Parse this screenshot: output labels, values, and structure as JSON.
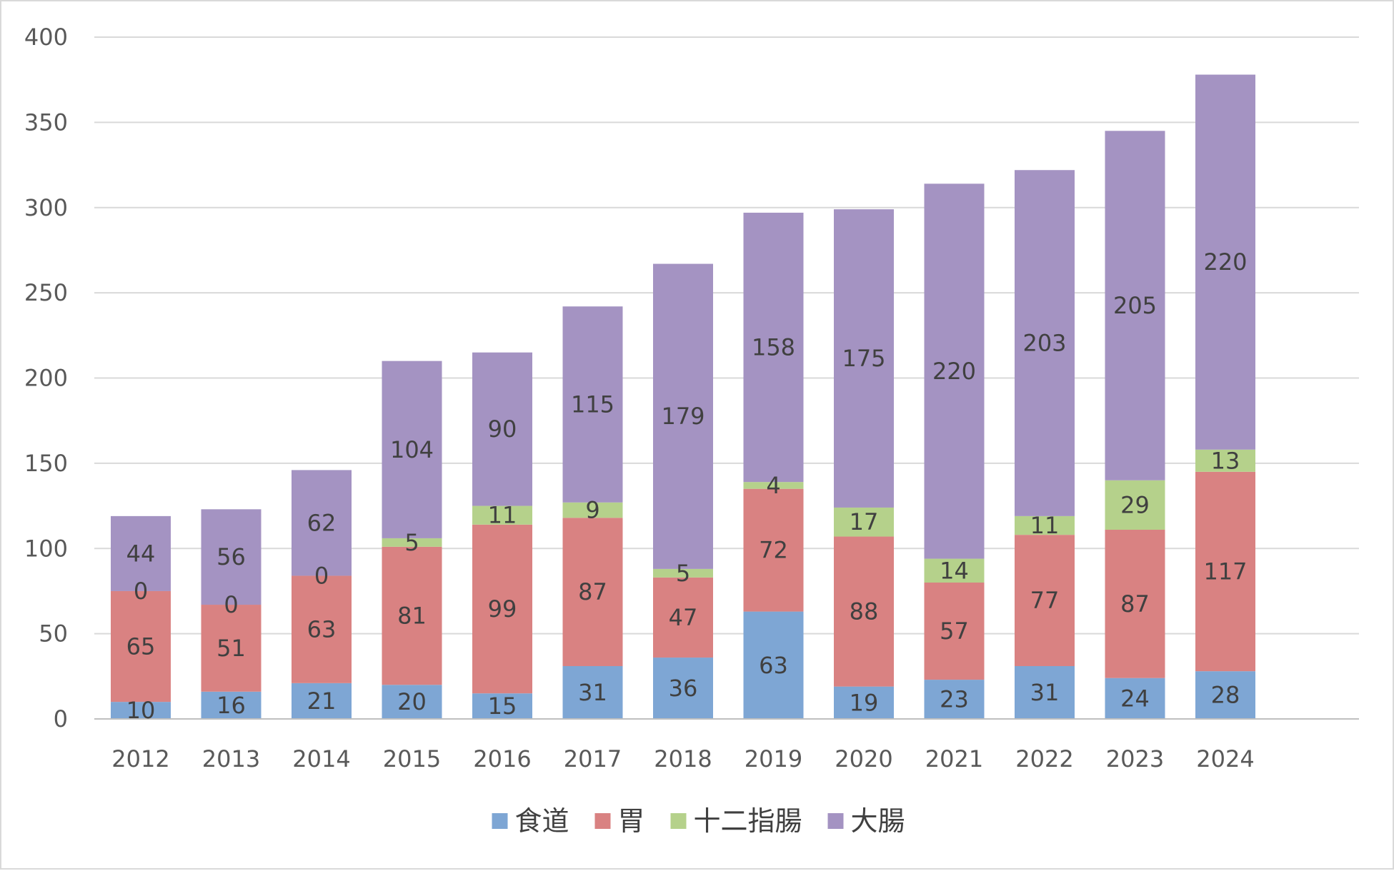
{
  "chart_data": {
    "type": "bar",
    "stacked": true,
    "title": "",
    "xlabel": "",
    "ylabel": "",
    "categories": [
      "2012",
      "2013",
      "2014",
      "2015",
      "2016",
      "2017",
      "2018",
      "2019",
      "2020",
      "2021",
      "2022",
      "2023",
      "2024"
    ],
    "series": [
      {
        "name": "食道",
        "color": "#7ea6d4",
        "values": [
          10,
          16,
          21,
          20,
          15,
          31,
          36,
          63,
          19,
          23,
          31,
          24,
          28
        ]
      },
      {
        "name": "胃",
        "color": "#d98282",
        "values": [
          65,
          51,
          63,
          81,
          99,
          87,
          47,
          72,
          88,
          57,
          77,
          87,
          117
        ]
      },
      {
        "name": "十二指腸",
        "color": "#b5d18b",
        "values": [
          0,
          0,
          0,
          5,
          11,
          9,
          5,
          4,
          17,
          14,
          11,
          29,
          13
        ]
      },
      {
        "name": "大腸",
        "color": "#a493c2",
        "values": [
          44,
          56,
          62,
          104,
          90,
          115,
          179,
          158,
          175,
          220,
          203,
          205,
          220
        ]
      }
    ],
    "ylim": [
      0,
      400
    ],
    "yticks": [
      0,
      50,
      100,
      150,
      200,
      250,
      300,
      350,
      400
    ],
    "grid": true,
    "legend": "bottom",
    "data_labels": true
  }
}
